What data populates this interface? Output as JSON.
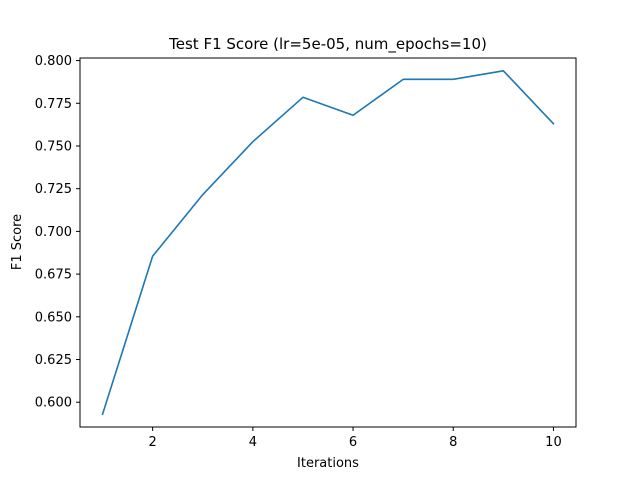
{
  "chart_data": {
    "type": "line",
    "title": "Test F1 Score (lr=5e-05, num_epochs=10)",
    "xlabel": "Iterations",
    "ylabel": "F1 Score",
    "xlim": [
      0.55,
      10.45
    ],
    "ylim": [
      0.5855,
      0.8015
    ],
    "xticks": [
      2,
      4,
      6,
      8,
      10
    ],
    "xtick_labels": [
      "2",
      "4",
      "6",
      "8",
      "10"
    ],
    "yticks": [
      0.6,
      0.625,
      0.65,
      0.675,
      0.7,
      0.725,
      0.75,
      0.775,
      0.8
    ],
    "ytick_labels": [
      "0.600",
      "0.625",
      "0.650",
      "0.675",
      "0.700",
      "0.725",
      "0.750",
      "0.775",
      "0.800"
    ],
    "grid": false,
    "series": [
      {
        "color": "#1f77b4",
        "x": [
          1,
          2,
          3,
          4,
          5,
          6,
          7,
          8,
          9,
          10
        ],
        "y": [
          0.593,
          0.6855,
          0.7215,
          0.7525,
          0.7785,
          0.768,
          0.789,
          0.789,
          0.794,
          0.763
        ]
      }
    ]
  }
}
